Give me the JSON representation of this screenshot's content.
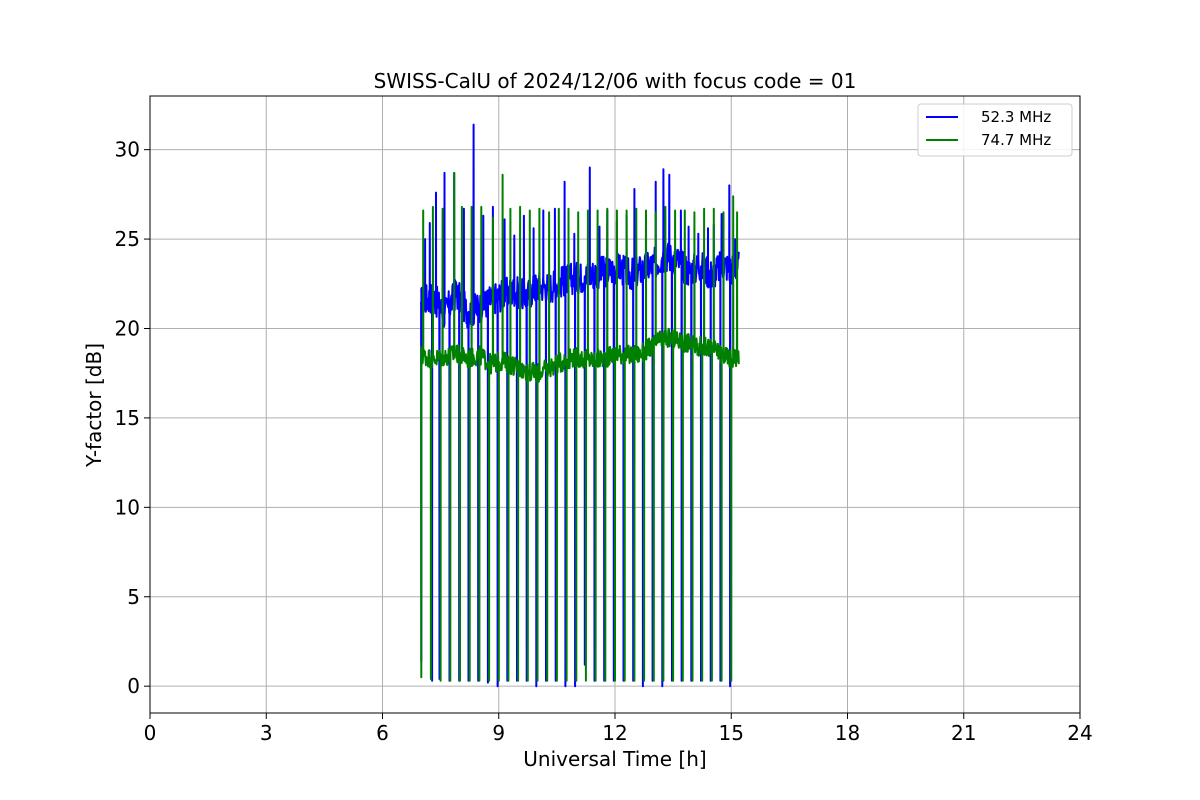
{
  "chart_data": {
    "type": "line",
    "title": "SWISS-CalU of 2024/12/06 with focus code = 01",
    "xlabel": "Universal Time [h]",
    "ylabel": "Y-factor [dB]",
    "xlim": [
      0,
      24
    ],
    "ylim": [
      -1.5,
      33
    ],
    "xticks": [
      0,
      3,
      6,
      9,
      12,
      15,
      18,
      21,
      24
    ],
    "yticks": [
      0,
      5,
      10,
      15,
      20,
      25,
      30
    ],
    "grid": true,
    "legend_position": "top-right",
    "series": [
      {
        "name": "52.3 MHz",
        "color": "#0000ff",
        "baseline": [
          [
            7.0,
            21.5
          ],
          [
            7.3,
            21.8
          ],
          [
            7.6,
            20.8
          ],
          [
            7.9,
            22.0
          ],
          [
            8.2,
            20.9
          ],
          [
            8.5,
            21.2
          ],
          [
            8.8,
            21.6
          ],
          [
            9.1,
            21.9
          ],
          [
            9.4,
            22.1
          ],
          [
            9.7,
            21.8
          ],
          [
            10.0,
            22.4
          ],
          [
            10.3,
            22.3
          ],
          [
            10.6,
            22.6
          ],
          [
            10.9,
            22.8
          ],
          [
            11.2,
            22.9
          ],
          [
            11.5,
            23.1
          ],
          [
            11.8,
            23.2
          ],
          [
            12.1,
            23.4
          ],
          [
            12.4,
            23.0
          ],
          [
            12.7,
            23.3
          ],
          [
            13.0,
            23.6
          ],
          [
            13.3,
            24.1
          ],
          [
            13.6,
            23.8
          ],
          [
            13.9,
            23.2
          ],
          [
            14.2,
            23.5
          ],
          [
            14.5,
            23.0
          ],
          [
            14.8,
            23.6
          ],
          [
            15.0,
            23.3
          ],
          [
            15.2,
            23.6
          ]
        ],
        "spikes": [
          [
            7.1,
            25.0
          ],
          [
            7.22,
            25.9
          ],
          [
            7.38,
            27.6
          ],
          [
            7.6,
            28.7
          ],
          [
            7.85,
            28.7
          ],
          [
            8.1,
            26.7
          ],
          [
            8.35,
            31.4
          ],
          [
            8.6,
            26.3
          ],
          [
            8.85,
            26.8
          ],
          [
            9.15,
            26.1
          ],
          [
            9.4,
            25.2
          ],
          [
            9.65,
            26.3
          ],
          [
            9.9,
            25.6
          ],
          [
            10.15,
            26.6
          ],
          [
            10.45,
            26.7
          ],
          [
            10.7,
            28.2
          ],
          [
            10.95,
            25.3
          ],
          [
            11.35,
            29.0
          ],
          [
            11.6,
            25.7
          ],
          [
            11.8,
            26.6
          ],
          [
            12.05,
            26.0
          ],
          [
            12.3,
            26.3
          ],
          [
            12.5,
            27.8
          ],
          [
            12.8,
            26.3
          ],
          [
            13.05,
            28.2
          ],
          [
            13.25,
            28.9
          ],
          [
            13.4,
            28.6
          ],
          [
            13.7,
            26.6
          ],
          [
            13.9,
            25.7
          ],
          [
            14.15,
            25.3
          ],
          [
            14.4,
            25.6
          ],
          [
            14.55,
            25.8
          ],
          [
            14.75,
            26.4
          ],
          [
            14.95,
            28.0
          ],
          [
            15.1,
            25.0
          ]
        ],
        "dips": [
          [
            7.0,
            1.4
          ],
          [
            7.28,
            0.3
          ],
          [
            7.47,
            0.4
          ],
          [
            7.73,
            0.3
          ],
          [
            7.98,
            0.3
          ],
          [
            8.22,
            0.3
          ],
          [
            8.47,
            0.3
          ],
          [
            8.72,
            0.2
          ],
          [
            8.97,
            0.0
          ],
          [
            9.22,
            0.3
          ],
          [
            9.47,
            0.3
          ],
          [
            9.72,
            0.3
          ],
          [
            9.97,
            0.0
          ],
          [
            10.22,
            0.3
          ],
          [
            10.47,
            0.3
          ],
          [
            10.72,
            0.0
          ],
          [
            10.97,
            0.0
          ],
          [
            11.22,
            1.2
          ],
          [
            11.47,
            0.3
          ],
          [
            11.72,
            0.3
          ],
          [
            11.97,
            0.3
          ],
          [
            12.22,
            0.3
          ],
          [
            12.47,
            0.3
          ],
          [
            12.72,
            0.0
          ],
          [
            12.97,
            0.3
          ],
          [
            13.22,
            0.0
          ],
          [
            13.47,
            0.3
          ],
          [
            13.72,
            0.3
          ],
          [
            13.97,
            0.3
          ],
          [
            14.22,
            0.3
          ],
          [
            14.47,
            0.3
          ],
          [
            14.72,
            0.3
          ],
          [
            14.97,
            0.0
          ]
        ]
      },
      {
        "name": "74.7 MHz",
        "color": "#008000",
        "baseline": [
          [
            7.0,
            18.5
          ],
          [
            7.3,
            18.3
          ],
          [
            7.6,
            18.4
          ],
          [
            7.9,
            18.6
          ],
          [
            8.2,
            18.3
          ],
          [
            8.5,
            18.5
          ],
          [
            8.8,
            18.0
          ],
          [
            9.1,
            18.2
          ],
          [
            9.4,
            17.9
          ],
          [
            9.7,
            17.6
          ],
          [
            10.0,
            17.5
          ],
          [
            10.3,
            17.8
          ],
          [
            10.6,
            18.1
          ],
          [
            10.9,
            18.4
          ],
          [
            11.2,
            18.3
          ],
          [
            11.5,
            18.2
          ],
          [
            11.8,
            18.4
          ],
          [
            12.1,
            18.6
          ],
          [
            12.4,
            18.5
          ],
          [
            12.7,
            18.6
          ],
          [
            13.0,
            19.1
          ],
          [
            13.3,
            19.5
          ],
          [
            13.6,
            19.3
          ],
          [
            13.9,
            19.2
          ],
          [
            14.2,
            19.0
          ],
          [
            14.5,
            18.9
          ],
          [
            14.8,
            18.5
          ],
          [
            15.0,
            18.3
          ],
          [
            15.2,
            18.5
          ]
        ],
        "spikes": [
          [
            7.05,
            26.6
          ],
          [
            7.3,
            26.8
          ],
          [
            7.55,
            26.7
          ],
          [
            7.85,
            28.7
          ],
          [
            8.05,
            26.8
          ],
          [
            8.3,
            26.8
          ],
          [
            8.55,
            26.8
          ],
          [
            8.85,
            26.2
          ],
          [
            9.1,
            28.6
          ],
          [
            9.3,
            26.7
          ],
          [
            9.55,
            26.8
          ],
          [
            9.8,
            26.6
          ],
          [
            10.05,
            26.7
          ],
          [
            10.3,
            26.5
          ],
          [
            10.55,
            26.7
          ],
          [
            10.8,
            26.7
          ],
          [
            11.05,
            26.5
          ],
          [
            11.3,
            26.6
          ],
          [
            11.55,
            26.6
          ],
          [
            11.8,
            26.7
          ],
          [
            12.05,
            26.6
          ],
          [
            12.3,
            26.6
          ],
          [
            12.55,
            26.7
          ],
          [
            12.8,
            26.6
          ],
          [
            13.05,
            26.5
          ],
          [
            13.3,
            26.8
          ],
          [
            13.55,
            26.6
          ],
          [
            13.8,
            26.6
          ],
          [
            14.05,
            26.5
          ],
          [
            14.3,
            26.7
          ],
          [
            14.55,
            26.7
          ],
          [
            14.8,
            26.5
          ],
          [
            15.05,
            27.4
          ],
          [
            15.15,
            26.5
          ]
        ],
        "dips": [
          [
            7.0,
            0.5
          ],
          [
            7.25,
            0.4
          ],
          [
            7.5,
            0.3
          ],
          [
            7.75,
            0.3
          ],
          [
            8.0,
            0.3
          ],
          [
            8.25,
            0.3
          ],
          [
            8.5,
            0.3
          ],
          [
            8.75,
            0.3
          ],
          [
            9.0,
            0.3
          ],
          [
            9.25,
            0.3
          ],
          [
            9.5,
            0.3
          ],
          [
            9.75,
            0.3
          ],
          [
            10.0,
            0.3
          ],
          [
            10.25,
            0.3
          ],
          [
            10.5,
            0.3
          ],
          [
            10.75,
            0.3
          ],
          [
            11.0,
            0.3
          ],
          [
            11.25,
            0.3
          ],
          [
            11.5,
            0.3
          ],
          [
            11.75,
            0.3
          ],
          [
            12.0,
            0.3
          ],
          [
            12.25,
            0.3
          ],
          [
            12.5,
            0.3
          ],
          [
            12.75,
            0.3
          ],
          [
            13.0,
            0.3
          ],
          [
            13.25,
            0.3
          ],
          [
            13.5,
            0.3
          ],
          [
            13.75,
            0.3
          ],
          [
            14.0,
            0.3
          ],
          [
            14.25,
            0.3
          ],
          [
            14.5,
            0.3
          ],
          [
            14.75,
            0.3
          ],
          [
            15.0,
            0.3
          ]
        ]
      }
    ]
  }
}
